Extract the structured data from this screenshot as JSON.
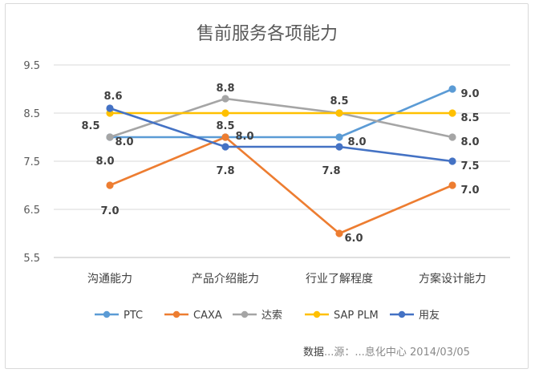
{
  "chart_data": {
    "type": "line",
    "title": "售前服务各项能力",
    "categories": [
      "沟通能力",
      "产品介绍能力",
      "行业了解程度",
      "方案设计能力"
    ],
    "ylim": [
      5.5,
      9.5
    ],
    "yticks": [
      "9.5",
      "8.5",
      "7.5",
      "6.5",
      "5.5"
    ],
    "ytick_values": [
      9.5,
      8.5,
      7.5,
      6.5,
      5.5
    ],
    "grid": true,
    "legend": "bottom",
    "series": [
      {
        "name": "PTC",
        "color": "#5b9bd5",
        "values": [
          8.0,
          8.0,
          8.0,
          9.0
        ],
        "labels": [
          "8.0",
          "8.0",
          "8.0",
          "9.0"
        ]
      },
      {
        "name": "CAXA",
        "color": "#ed7d31",
        "values": [
          7.0,
          8.0,
          6.0,
          7.0
        ],
        "labels": [
          "7.0",
          "",
          "6.0",
          "7.0"
        ]
      },
      {
        "name": "达索",
        "color": "#a5a5a5",
        "values": [
          8.0,
          8.8,
          8.5,
          8.0
        ],
        "labels": [
          "8.0",
          "8.8",
          "8.5",
          "8.0"
        ]
      },
      {
        "name": "SAP PLM",
        "color": "#ffc000",
        "values": [
          8.5,
          8.5,
          8.5,
          8.5
        ],
        "labels": [
          "8.5",
          "8.5",
          "",
          "8.5"
        ]
      },
      {
        "name": "用友",
        "color": "#4472c4",
        "values": [
          8.6,
          7.8,
          7.8,
          7.5
        ],
        "labels": [
          "8.6",
          "7.8",
          "7.8",
          "7.5"
        ]
      }
    ]
  },
  "source": {
    "prefix": "数据",
    "middle": "...源：",
    "suffix": "...息化中心 2014/03/05"
  }
}
